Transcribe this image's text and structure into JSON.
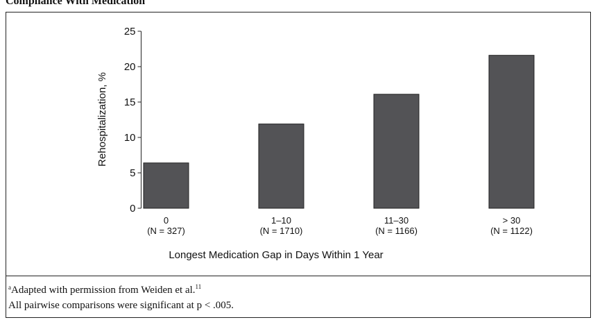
{
  "chart_data": {
    "type": "bar",
    "title": "Compliance With Medication",
    "categories": [
      "0",
      "1–10",
      "11–30",
      "> 30"
    ],
    "category_notes": [
      "(N = 327)",
      "(N = 1710)",
      "(N = 1166)",
      "(N = 1122)"
    ],
    "values": [
      6.4,
      11.9,
      16.1,
      21.6
    ],
    "color": "#535356",
    "ylim": [
      0,
      25
    ],
    "yticks": [
      0,
      5,
      10,
      15,
      20,
      25
    ],
    "y_label": "Rehospitalization, %",
    "x_label": "Longest Medication Gap in Days Within 1 Year",
    "footnotes": [
      {
        "marker": "a",
        "text": "Adapted with permission from Weiden et al.",
        "ref": "11"
      },
      {
        "text": "All pairwise comparisons were significant at p < .005."
      }
    ]
  }
}
